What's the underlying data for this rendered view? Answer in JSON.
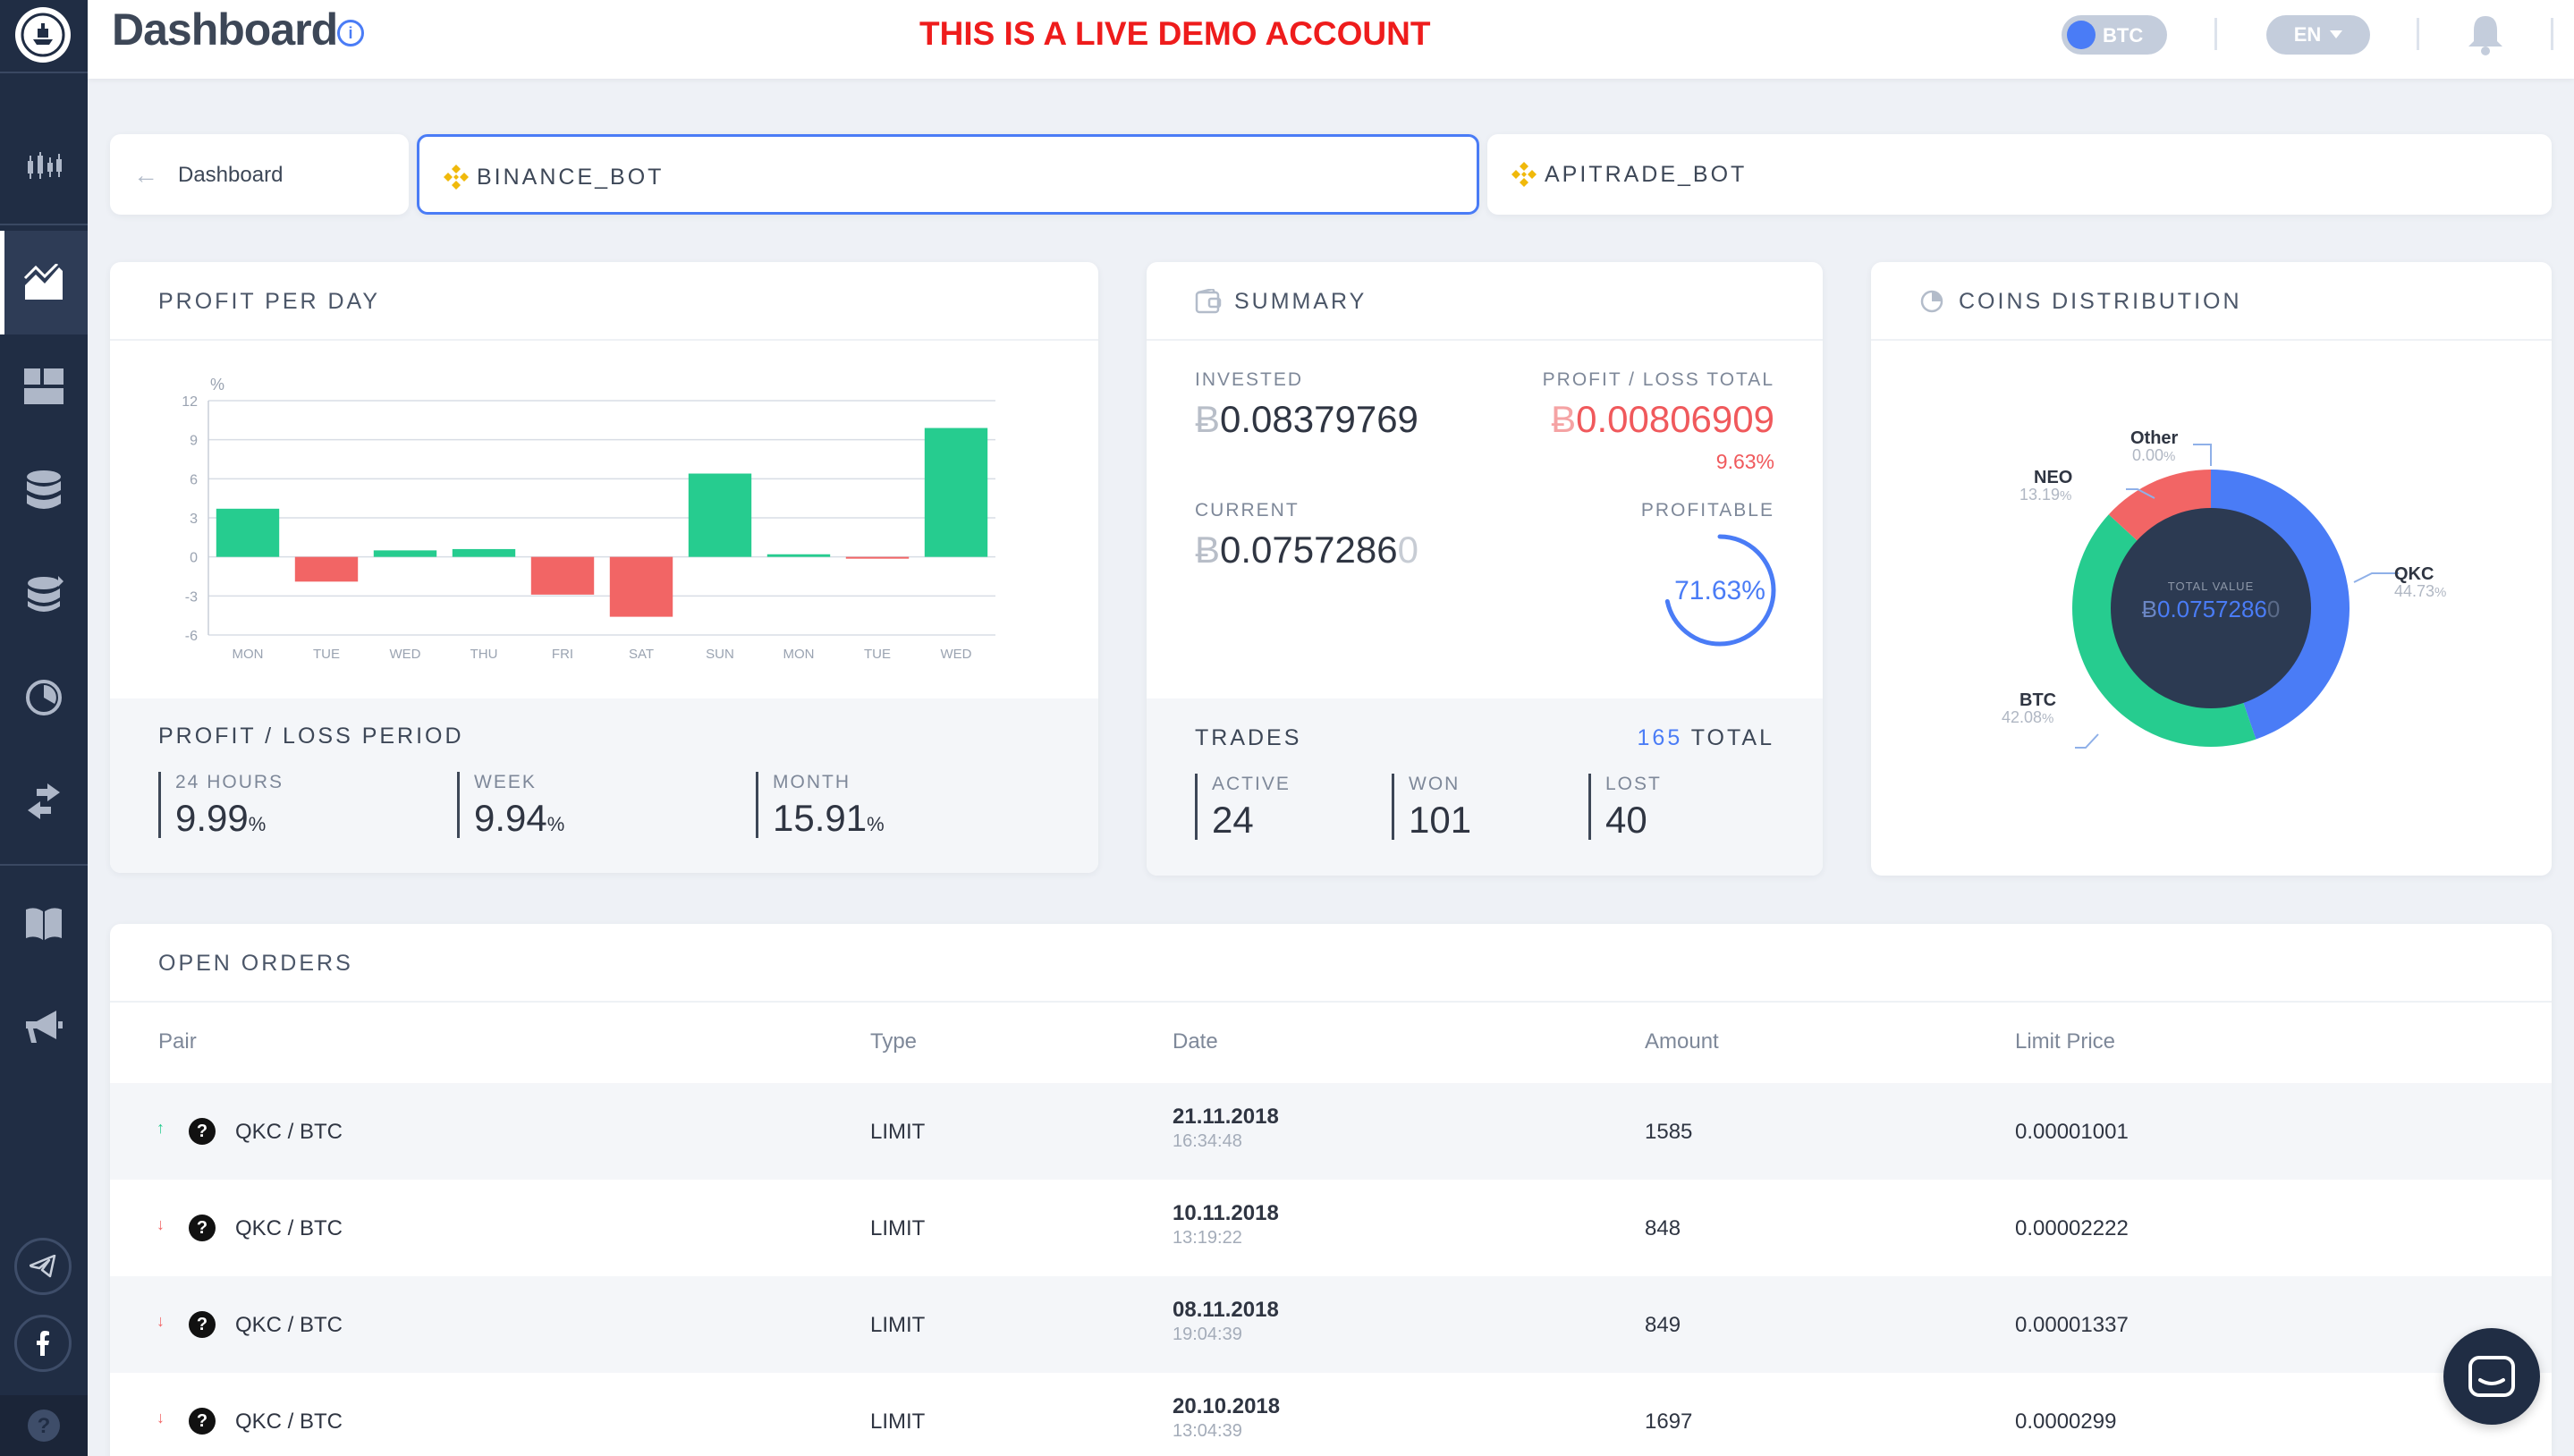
{
  "header": {
    "title": "Dashboard",
    "info_icon": "i",
    "demo_notice": "THIS IS A LIVE DEMO ACCOUNT",
    "currency_toggle": "BTC",
    "language": "EN"
  },
  "breadcrumb": {
    "back_label": "Dashboard",
    "bots": [
      {
        "label": "BINANCE_BOT",
        "active": true
      },
      {
        "label": "APITRADE_BOT",
        "active": false
      }
    ]
  },
  "profit_per_day": {
    "title": "PROFIT PER DAY",
    "period_title": "PROFIT / LOSS PERIOD",
    "periods": [
      {
        "label": "24 HOURS",
        "value": "9.99",
        "unit": "%"
      },
      {
        "label": "WEEK",
        "value": "9.94",
        "unit": "%"
      },
      {
        "label": "MONTH",
        "value": "15.91",
        "unit": "%"
      }
    ]
  },
  "chart_data": {
    "type": "bar",
    "ylabel": "%",
    "ylim": [
      -6,
      12
    ],
    "yticks": [
      12,
      9,
      6,
      3,
      0,
      -3,
      -6
    ],
    "categories": [
      "MON",
      "TUE",
      "WED",
      "THU",
      "FRI",
      "SAT",
      "SUN",
      "MON",
      "TUE",
      "WED"
    ],
    "values": [
      3.7,
      -1.9,
      0.5,
      0.6,
      -2.9,
      -4.6,
      6.4,
      0.2,
      -0.1,
      9.9
    ],
    "positive_color": "#26cc8f",
    "negative_color": "#f26565"
  },
  "summary": {
    "title": "SUMMARY",
    "invested_label": "INVESTED",
    "invested_symbol": "Ƀ",
    "invested_value": "0.08379769",
    "pl_label": "PROFIT / LOSS TOTAL",
    "pl_symbol": "Ƀ",
    "pl_value": "0.00806909",
    "pl_percent": "9.63%",
    "current_label": "CURRENT",
    "current_symbol": "Ƀ",
    "current_value": "0.0757286",
    "current_faded": "0",
    "profitable_label": "PROFITABLE",
    "profitable_value": "71.63%",
    "profitable_fraction": 0.7163
  },
  "trades": {
    "title": "TRADES",
    "total_count": "165",
    "total_label": "TOTAL",
    "items": [
      {
        "label": "ACTIVE",
        "value": "24"
      },
      {
        "label": "WON",
        "value": "101"
      },
      {
        "label": "LOST",
        "value": "40"
      }
    ]
  },
  "coins": {
    "title": "COINS DISTRIBUTION",
    "center_label": "TOTAL VALUE",
    "center_symbol": "Ƀ",
    "center_value": "0.0757286",
    "center_faded": "0",
    "slices": [
      {
        "name": "QKC",
        "percent": "44.73",
        "value": 44.73,
        "color": "#4a7cf6"
      },
      {
        "name": "BTC",
        "percent": "42.08",
        "value": 42.08,
        "color": "#26cc8f"
      },
      {
        "name": "NEO",
        "percent": "13.19",
        "value": 13.19,
        "color": "#f26565"
      },
      {
        "name": "Other",
        "percent": "0.00",
        "value": 0.0,
        "color": "#b0b7c3"
      }
    ],
    "percent_unit": "%"
  },
  "orders": {
    "title": "OPEN ORDERS",
    "columns": [
      "Pair",
      "Type",
      "Date",
      "Amount",
      "Limit Price"
    ],
    "rows": [
      {
        "direction": "up",
        "pair": "QKC / BTC",
        "type": "LIMIT",
        "date": "21.11.2018",
        "time": "16:34:48",
        "amount": "1585",
        "price": "0.00001001"
      },
      {
        "direction": "down",
        "pair": "QKC / BTC",
        "type": "LIMIT",
        "date": "10.11.2018",
        "time": "13:19:22",
        "amount": "848",
        "price": "0.00002222"
      },
      {
        "direction": "down",
        "pair": "QKC / BTC",
        "type": "LIMIT",
        "date": "08.11.2018",
        "time": "19:04:39",
        "amount": "849",
        "price": "0.00001337"
      },
      {
        "direction": "down",
        "pair": "QKC / BTC",
        "type": "LIMIT",
        "date": "20.10.2018",
        "time": "13:04:39",
        "amount": "1697",
        "price": "0.0000299"
      }
    ]
  },
  "colors": {
    "sidebar": "#202d44",
    "accent": "#4a7cf6",
    "positive": "#26cc8f",
    "negative": "#f26565",
    "demo_notice": "#ee1c1c"
  }
}
